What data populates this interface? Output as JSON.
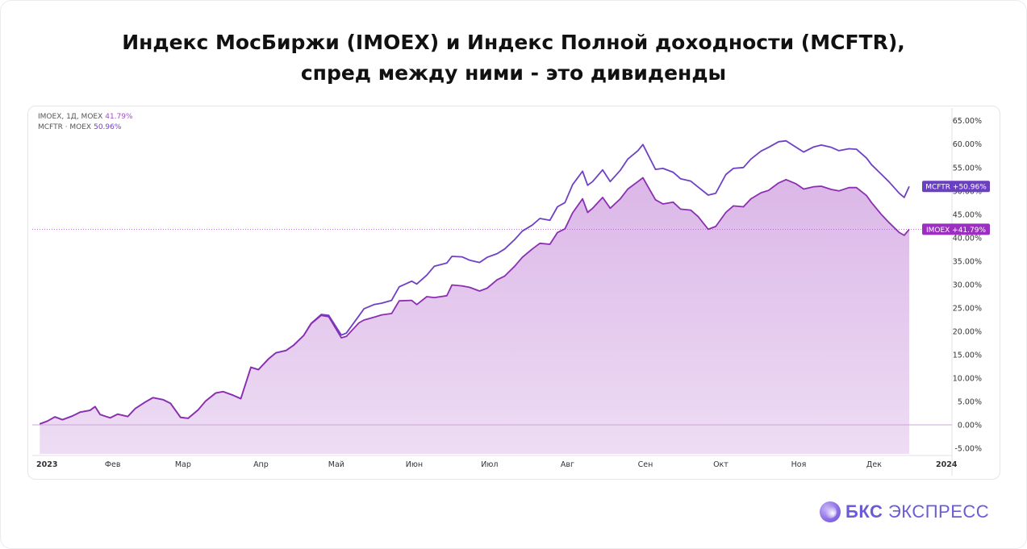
{
  "title_line1": "Индекс МосБиржи (IMOEX) и Индекс Полной доходности (MCFTR),",
  "title_line2": "спред между ними - это дивиденды",
  "legend": [
    {
      "label": "IMOEX, 1Д, MOEX",
      "value": "41.79%",
      "color": "#a64bc4"
    },
    {
      "label": "MCFTR · MOEX",
      "value": "50.96%",
      "color": "#7040c0"
    }
  ],
  "logo": {
    "bold": "БКС",
    "rest": "ЭКСПРЕСС"
  },
  "colors": {
    "imoex": "#8b2fb0",
    "mcftr": "#6e40c5",
    "fill": "#d9b3e6",
    "imoex_tag": "#9b2fc0",
    "mcftr_tag": "#6a3fc4"
  },
  "chart_data": {
    "type": "area",
    "x_tick_labels": [
      "2023",
      "Фев",
      "Мар",
      "Апр",
      "Май",
      "Июн",
      "Июл",
      "Авг",
      "Сен",
      "Окт",
      "Ноя",
      "Дек",
      "2024"
    ],
    "y_ticks": [
      -5,
      0,
      5,
      10,
      15,
      20,
      25,
      30,
      35,
      40,
      45,
      50,
      55,
      60,
      65
    ],
    "ylim": [
      -6.2,
      66.5
    ],
    "y_format": "percent",
    "grid": false,
    "legend_position": "top-left",
    "series": [
      {
        "name": "IMOEX",
        "end_label": "IMOEX  +41.79%",
        "points": [
          [
            "2023-01-03",
            0.2
          ],
          [
            "2023-01-06",
            0.8
          ],
          [
            "2023-01-09",
            1.7
          ],
          [
            "2023-01-12",
            1.1
          ],
          [
            "2023-01-16",
            1.9
          ],
          [
            "2023-01-19",
            2.7
          ],
          [
            "2023-01-23",
            3.1
          ],
          [
            "2023-01-25",
            3.9
          ],
          [
            "2023-01-27",
            2.2
          ],
          [
            "2023-01-31",
            1.5
          ],
          [
            "2023-02-03",
            2.3
          ],
          [
            "2023-02-07",
            1.8
          ],
          [
            "2023-02-10",
            3.5
          ],
          [
            "2023-02-14",
            4.9
          ],
          [
            "2023-02-17",
            5.8
          ],
          [
            "2023-02-21",
            5.4
          ],
          [
            "2023-02-24",
            4.6
          ],
          [
            "2023-02-28",
            1.6
          ],
          [
            "2023-03-03",
            1.4
          ],
          [
            "2023-03-07",
            3.2
          ],
          [
            "2023-03-10",
            5.1
          ],
          [
            "2023-03-14",
            6.8
          ],
          [
            "2023-03-17",
            7.1
          ],
          [
            "2023-03-21",
            6.3
          ],
          [
            "2023-03-24",
            5.6
          ],
          [
            "2023-03-28",
            12.3
          ],
          [
            "2023-03-31",
            11.8
          ],
          [
            "2023-04-04",
            14.1
          ],
          [
            "2023-04-07",
            15.4
          ],
          [
            "2023-04-11",
            15.9
          ],
          [
            "2023-04-14",
            17.0
          ],
          [
            "2023-04-18",
            19.1
          ],
          [
            "2023-04-21",
            21.6
          ],
          [
            "2023-04-25",
            23.4
          ],
          [
            "2023-04-28",
            23.1
          ],
          [
            "2023-05-03",
            18.6
          ],
          [
            "2023-05-05",
            18.9
          ],
          [
            "2023-05-10",
            21.8
          ],
          [
            "2023-05-12",
            22.4
          ],
          [
            "2023-05-16",
            23.0
          ],
          [
            "2023-05-19",
            23.5
          ],
          [
            "2023-05-23",
            23.8
          ],
          [
            "2023-05-26",
            26.5
          ],
          [
            "2023-05-31",
            26.6
          ],
          [
            "2023-06-02",
            25.7
          ],
          [
            "2023-06-06",
            27.4
          ],
          [
            "2023-06-09",
            27.2
          ],
          [
            "2023-06-14",
            27.6
          ],
          [
            "2023-06-16",
            29.9
          ],
          [
            "2023-06-20",
            29.7
          ],
          [
            "2023-06-23",
            29.4
          ],
          [
            "2023-06-27",
            28.6
          ],
          [
            "2023-06-30",
            29.2
          ],
          [
            "2023-07-04",
            31.0
          ],
          [
            "2023-07-07",
            31.8
          ],
          [
            "2023-07-11",
            33.9
          ],
          [
            "2023-07-14",
            35.8
          ],
          [
            "2023-07-18",
            37.6
          ],
          [
            "2023-07-21",
            38.8
          ],
          [
            "2023-07-25",
            38.6
          ],
          [
            "2023-07-28",
            41.1
          ],
          [
            "2023-07-31",
            41.9
          ],
          [
            "2023-08-03",
            45.3
          ],
          [
            "2023-08-07",
            48.3
          ],
          [
            "2023-08-09",
            45.4
          ],
          [
            "2023-08-11",
            46.3
          ],
          [
            "2023-08-15",
            48.6
          ],
          [
            "2023-08-18",
            46.3
          ],
          [
            "2023-08-22",
            48.3
          ],
          [
            "2023-08-25",
            50.4
          ],
          [
            "2023-08-29",
            52.0
          ],
          [
            "2023-08-31",
            52.8
          ],
          [
            "2023-09-05",
            48.1
          ],
          [
            "2023-09-08",
            47.2
          ],
          [
            "2023-09-12",
            47.6
          ],
          [
            "2023-09-15",
            46.1
          ],
          [
            "2023-09-19",
            45.9
          ],
          [
            "2023-09-22",
            44.5
          ],
          [
            "2023-09-26",
            41.8
          ],
          [
            "2023-09-29",
            42.4
          ],
          [
            "2023-10-03",
            45.4
          ],
          [
            "2023-10-06",
            46.8
          ],
          [
            "2023-10-10",
            46.6
          ],
          [
            "2023-10-13",
            48.3
          ],
          [
            "2023-10-17",
            49.6
          ],
          [
            "2023-10-20",
            50.1
          ],
          [
            "2023-10-24",
            51.7
          ],
          [
            "2023-10-27",
            52.4
          ],
          [
            "2023-10-31",
            51.5
          ],
          [
            "2023-11-03",
            50.4
          ],
          [
            "2023-11-07",
            50.9
          ],
          [
            "2023-11-10",
            51.0
          ],
          [
            "2023-11-14",
            50.3
          ],
          [
            "2023-11-17",
            50.0
          ],
          [
            "2023-11-21",
            50.7
          ],
          [
            "2023-11-24",
            50.7
          ],
          [
            "2023-11-28",
            49.0
          ],
          [
            "2023-11-30",
            47.5
          ],
          [
            "2023-12-04",
            44.9
          ],
          [
            "2023-12-07",
            43.2
          ],
          [
            "2023-12-11",
            41.1
          ],
          [
            "2023-12-13",
            40.5
          ],
          [
            "2023-12-15",
            41.79
          ]
        ]
      },
      {
        "name": "MCFTR",
        "end_label": "MCFTR  +50.96%",
        "points": [
          [
            "2023-01-03",
            0.2
          ],
          [
            "2023-01-06",
            0.8
          ],
          [
            "2023-01-09",
            1.7
          ],
          [
            "2023-01-12",
            1.1
          ],
          [
            "2023-01-16",
            1.9
          ],
          [
            "2023-01-19",
            2.7
          ],
          [
            "2023-01-23",
            3.1
          ],
          [
            "2023-01-25",
            3.9
          ],
          [
            "2023-01-27",
            2.2
          ],
          [
            "2023-01-31",
            1.5
          ],
          [
            "2023-02-03",
            2.3
          ],
          [
            "2023-02-07",
            1.8
          ],
          [
            "2023-02-10",
            3.5
          ],
          [
            "2023-02-14",
            4.9
          ],
          [
            "2023-02-17",
            5.8
          ],
          [
            "2023-02-21",
            5.4
          ],
          [
            "2023-02-24",
            4.6
          ],
          [
            "2023-02-28",
            1.6
          ],
          [
            "2023-03-03",
            1.4
          ],
          [
            "2023-03-07",
            3.2
          ],
          [
            "2023-03-10",
            5.1
          ],
          [
            "2023-03-14",
            6.8
          ],
          [
            "2023-03-17",
            7.1
          ],
          [
            "2023-03-21",
            6.3
          ],
          [
            "2023-03-24",
            5.6
          ],
          [
            "2023-03-28",
            12.3
          ],
          [
            "2023-03-31",
            11.8
          ],
          [
            "2023-04-04",
            14.1
          ],
          [
            "2023-04-07",
            15.4
          ],
          [
            "2023-04-11",
            15.9
          ],
          [
            "2023-04-14",
            17.0
          ],
          [
            "2023-04-18",
            19.1
          ],
          [
            "2023-04-21",
            21.7
          ],
          [
            "2023-04-25",
            23.6
          ],
          [
            "2023-04-28",
            23.4
          ],
          [
            "2023-05-03",
            19.2
          ],
          [
            "2023-05-05",
            19.6
          ],
          [
            "2023-05-10",
            23.3
          ],
          [
            "2023-05-12",
            24.8
          ],
          [
            "2023-05-16",
            25.7
          ],
          [
            "2023-05-19",
            26.0
          ],
          [
            "2023-05-23",
            26.6
          ],
          [
            "2023-05-26",
            29.5
          ],
          [
            "2023-05-31",
            30.7
          ],
          [
            "2023-06-02",
            30.1
          ],
          [
            "2023-06-06",
            32.0
          ],
          [
            "2023-06-09",
            33.9
          ],
          [
            "2023-06-14",
            34.6
          ],
          [
            "2023-06-16",
            36.0
          ],
          [
            "2023-06-20",
            35.9
          ],
          [
            "2023-06-23",
            35.2
          ],
          [
            "2023-06-27",
            34.7
          ],
          [
            "2023-06-30",
            35.8
          ],
          [
            "2023-07-04",
            36.6
          ],
          [
            "2023-07-07",
            37.6
          ],
          [
            "2023-07-11",
            39.6
          ],
          [
            "2023-07-14",
            41.4
          ],
          [
            "2023-07-18",
            42.7
          ],
          [
            "2023-07-21",
            44.1
          ],
          [
            "2023-07-25",
            43.7
          ],
          [
            "2023-07-28",
            46.6
          ],
          [
            "2023-07-31",
            47.5
          ],
          [
            "2023-08-03",
            51.3
          ],
          [
            "2023-08-07",
            54.2
          ],
          [
            "2023-08-09",
            51.2
          ],
          [
            "2023-08-11",
            52.0
          ],
          [
            "2023-08-15",
            54.5
          ],
          [
            "2023-08-18",
            52.0
          ],
          [
            "2023-08-22",
            54.4
          ],
          [
            "2023-08-25",
            56.8
          ],
          [
            "2023-08-29",
            58.6
          ],
          [
            "2023-08-31",
            59.9
          ],
          [
            "2023-09-05",
            54.6
          ],
          [
            "2023-09-08",
            54.8
          ],
          [
            "2023-09-12",
            54.0
          ],
          [
            "2023-09-15",
            52.6
          ],
          [
            "2023-09-19",
            52.1
          ],
          [
            "2023-09-22",
            50.8
          ],
          [
            "2023-09-26",
            49.1
          ],
          [
            "2023-09-29",
            49.5
          ],
          [
            "2023-10-03",
            53.5
          ],
          [
            "2023-10-06",
            54.8
          ],
          [
            "2023-10-10",
            55.0
          ],
          [
            "2023-10-13",
            56.8
          ],
          [
            "2023-10-17",
            58.5
          ],
          [
            "2023-10-20",
            59.3
          ],
          [
            "2023-10-24",
            60.5
          ],
          [
            "2023-10-27",
            60.7
          ],
          [
            "2023-10-31",
            59.3
          ],
          [
            "2023-11-03",
            58.3
          ],
          [
            "2023-11-07",
            59.4
          ],
          [
            "2023-11-10",
            59.8
          ],
          [
            "2023-11-14",
            59.3
          ],
          [
            "2023-11-17",
            58.6
          ],
          [
            "2023-11-21",
            59.0
          ],
          [
            "2023-11-24",
            58.9
          ],
          [
            "2023-11-28",
            57.0
          ],
          [
            "2023-11-30",
            55.6
          ],
          [
            "2023-12-04",
            53.5
          ],
          [
            "2023-12-07",
            51.9
          ],
          [
            "2023-12-11",
            49.5
          ],
          [
            "2023-12-13",
            48.6
          ],
          [
            "2023-12-15",
            50.96
          ]
        ]
      }
    ],
    "reference_lines": [
      {
        "y": 0
      },
      {
        "y": 41.79,
        "style": "dotted"
      }
    ]
  }
}
